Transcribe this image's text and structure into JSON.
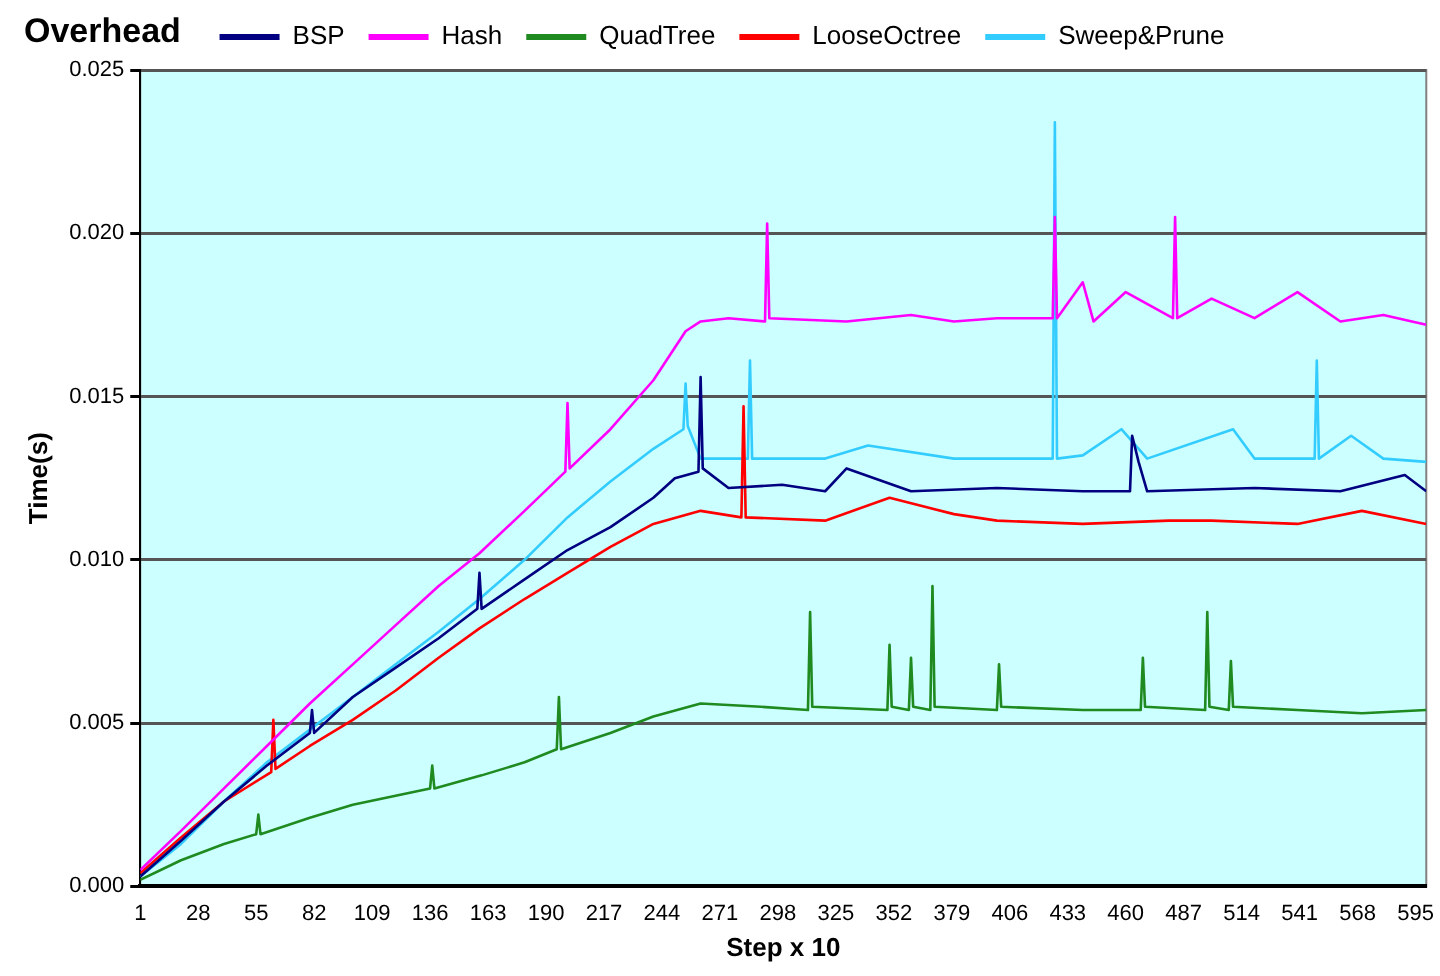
{
  "chart_data": {
    "type": "line",
    "title": "Overhead",
    "xlabel": "Step x 10",
    "ylabel": "Time(s)",
    "xlim": [
      1,
      600
    ],
    "xticks": [
      1,
      28,
      55,
      82,
      109,
      136,
      163,
      190,
      217,
      244,
      271,
      298,
      325,
      352,
      379,
      406,
      433,
      460,
      487,
      514,
      541,
      568,
      595
    ],
    "ylim": [
      0,
      0.025
    ],
    "yticks": [
      {
        "value": 0,
        "label": "0.000"
      },
      {
        "value": 0.005,
        "label": "0.005"
      },
      {
        "value": 0.01,
        "label": "0.010"
      },
      {
        "value": 0.015,
        "label": "0.015"
      },
      {
        "value": 0.02,
        "label": "0.020"
      },
      {
        "value": 0.025,
        "label": "0.025"
      }
    ],
    "grid": "y",
    "legend": "top",
    "marker": "none",
    "line_style": "solid",
    "series": [
      {
        "name": "BSP",
        "color": "#000080",
        "x": [
          1,
          20,
          40,
          60,
          80,
          81,
          82,
          100,
          120,
          140,
          158,
          159,
          160,
          180,
          200,
          220,
          240,
          250,
          261,
          262,
          263,
          275,
          300,
          320,
          330,
          360,
          400,
          440,
          462,
          463,
          466,
          470,
          520,
          560,
          590,
          600
        ],
        "values": [
          0.0003,
          0.0014,
          0.0026,
          0.0037,
          0.0047,
          0.0054,
          0.0047,
          0.0058,
          0.0067,
          0.0076,
          0.0085,
          0.0096,
          0.0085,
          0.0094,
          0.0103,
          0.011,
          0.0119,
          0.0125,
          0.0127,
          0.0156,
          0.0128,
          0.0122,
          0.0123,
          0.0121,
          0.0128,
          0.0121,
          0.0122,
          0.0121,
          0.0121,
          0.0138,
          0.013,
          0.0121,
          0.0122,
          0.0121,
          0.0126,
          0.0121
        ]
      },
      {
        "name": "Hash",
        "color": "#ff00ff",
        "x": [
          1,
          20,
          40,
          60,
          80,
          100,
          120,
          140,
          159,
          180,
          199,
          200,
          201,
          220,
          240,
          255,
          262,
          275,
          292,
          293,
          294,
          330,
          360,
          380,
          400,
          426,
          427,
          428,
          440,
          445,
          460,
          482,
          483,
          484,
          500,
          520,
          540,
          560,
          580,
          600
        ],
        "values": [
          0.0005,
          0.0017,
          0.003,
          0.0043,
          0.0056,
          0.0068,
          0.008,
          0.0092,
          0.0102,
          0.0115,
          0.0127,
          0.0148,
          0.0128,
          0.014,
          0.0155,
          0.017,
          0.0173,
          0.0174,
          0.0173,
          0.0203,
          0.0174,
          0.0173,
          0.0175,
          0.0173,
          0.0174,
          0.0174,
          0.0205,
          0.0174,
          0.0185,
          0.0173,
          0.0182,
          0.0174,
          0.0205,
          0.0174,
          0.018,
          0.0174,
          0.0182,
          0.0173,
          0.0175,
          0.0172
        ]
      },
      {
        "name": "QuadTree",
        "color": "#1f8a1f",
        "x": [
          1,
          20,
          40,
          55,
          56,
          57,
          80,
          100,
          136,
          137,
          138,
          160,
          180,
          195,
          196,
          197,
          220,
          240,
          262,
          290,
          312,
          313,
          314,
          349,
          350,
          351,
          359,
          360,
          361,
          369,
          370,
          371,
          400,
          401,
          402,
          440,
          467,
          468,
          469,
          497,
          498,
          499,
          508,
          509,
          510,
          540,
          570,
          600
        ],
        "values": [
          0.0002,
          0.0008,
          0.0013,
          0.0016,
          0.0022,
          0.0016,
          0.0021,
          0.0025,
          0.003,
          0.0037,
          0.003,
          0.0034,
          0.0038,
          0.0042,
          0.0058,
          0.0042,
          0.0047,
          0.0052,
          0.0056,
          0.0055,
          0.0054,
          0.0084,
          0.0055,
          0.0054,
          0.0074,
          0.0055,
          0.0054,
          0.007,
          0.0055,
          0.0054,
          0.0092,
          0.0055,
          0.0054,
          0.0068,
          0.0055,
          0.0054,
          0.0054,
          0.007,
          0.0055,
          0.0054,
          0.0084,
          0.0055,
          0.0054,
          0.0069,
          0.0055,
          0.0054,
          0.0053,
          0.0054
        ]
      },
      {
        "name": "LooseOctree",
        "color": "#ff0000",
        "x": [
          1,
          20,
          40,
          62,
          63,
          64,
          80,
          100,
          120,
          140,
          159,
          180,
          200,
          220,
          240,
          262,
          281,
          282,
          283,
          320,
          350,
          380,
          400,
          440,
          480,
          500,
          540,
          570,
          600
        ],
        "values": [
          0.0004,
          0.0015,
          0.0026,
          0.0035,
          0.0051,
          0.0036,
          0.0043,
          0.0051,
          0.006,
          0.007,
          0.0079,
          0.0088,
          0.0096,
          0.0104,
          0.0111,
          0.0115,
          0.0113,
          0.0147,
          0.0113,
          0.0112,
          0.0119,
          0.0114,
          0.0112,
          0.0111,
          0.0112,
          0.0112,
          0.0111,
          0.0115,
          0.0111
        ]
      },
      {
        "name": "Sweep&Prune",
        "color": "#33ccff",
        "x": [
          1,
          20,
          40,
          60,
          80,
          100,
          120,
          140,
          159,
          180,
          200,
          220,
          240,
          254,
          255,
          256,
          262,
          284,
          285,
          286,
          320,
          340,
          380,
          426,
          427,
          428,
          440,
          458,
          470,
          510,
          520,
          548,
          549,
          550,
          565,
          580,
          600
        ],
        "values": [
          0.0003,
          0.0013,
          0.0026,
          0.0038,
          0.0048,
          0.0058,
          0.0068,
          0.0078,
          0.0088,
          0.01,
          0.0113,
          0.0124,
          0.0134,
          0.014,
          0.0154,
          0.0141,
          0.0131,
          0.0131,
          0.0161,
          0.0131,
          0.0131,
          0.0135,
          0.0131,
          0.0131,
          0.0234,
          0.0131,
          0.0132,
          0.014,
          0.0131,
          0.014,
          0.0131,
          0.0131,
          0.0161,
          0.0131,
          0.0138,
          0.0131,
          0.013
        ]
      }
    ]
  }
}
